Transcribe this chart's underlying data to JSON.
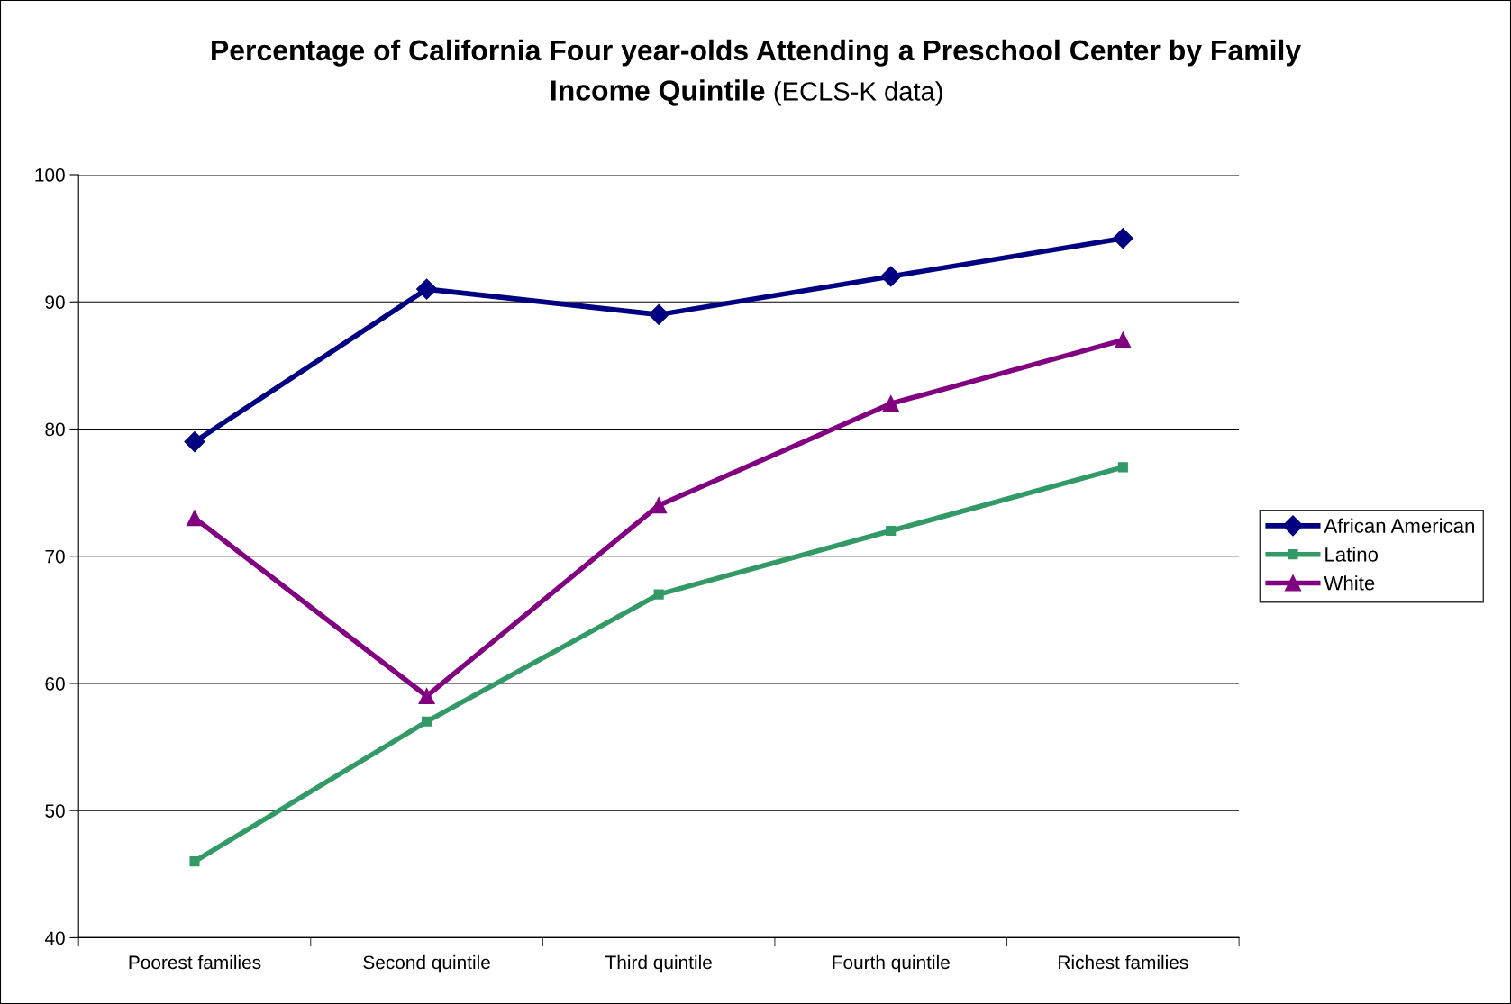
{
  "chart_data": {
    "type": "line",
    "title": "Percentage of California Four year-olds Attending a Preschool Center by Family Income Quintile",
    "subtitle": "(ECLS-K data)",
    "categories": [
      "Poorest families",
      "Second quintile",
      "Third quintile",
      "Fourth quintile",
      "Richest families"
    ],
    "series": [
      {
        "name": "African American",
        "color": "#000080",
        "marker": "diamond",
        "values": [
          79,
          91,
          89,
          92,
          95
        ]
      },
      {
        "name": "Latino",
        "color": "#339966",
        "marker": "square",
        "values": [
          46,
          57,
          67,
          72,
          77
        ]
      },
      {
        "name": "White",
        "color": "#800080",
        "marker": "triangle",
        "values": [
          73,
          59,
          74,
          82,
          87
        ]
      }
    ],
    "ylim": [
      40,
      100
    ],
    "yticks": [
      40,
      50,
      60,
      70,
      80,
      90,
      100
    ],
    "grid": "y",
    "legend": "right",
    "line_style": "solid"
  }
}
